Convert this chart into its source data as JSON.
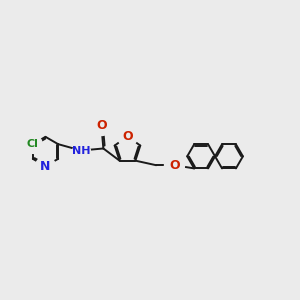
{
  "bg_color": "#ebebeb",
  "bond_color": "#1a1a1a",
  "N_color": "#2222dd",
  "O_color": "#cc2200",
  "Cl_color": "#228822",
  "lw": 1.4,
  "dbo": 0.055,
  "figsize": [
    3.0,
    3.0
  ],
  "dpi": 100,
  "xlim": [
    -4.5,
    5.5
  ],
  "ylim": [
    -2.8,
    2.8
  ]
}
